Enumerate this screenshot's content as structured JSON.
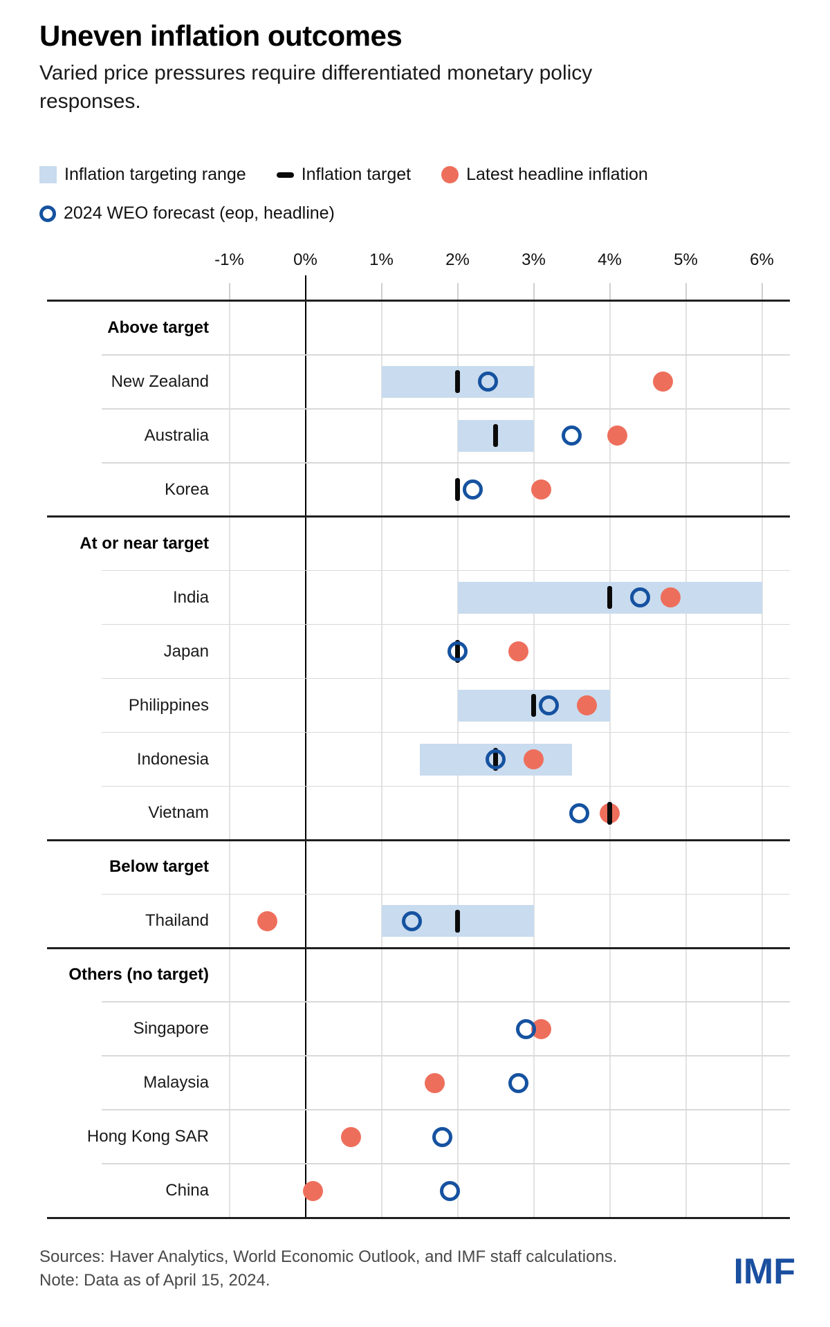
{
  "header": {
    "title": "Uneven inflation outcomes",
    "subtitle": "Varied price pressures require differentiated monetary policy responses."
  },
  "legend": {
    "items": [
      {
        "marker": "range-swatch",
        "label": "Inflation targeting range"
      },
      {
        "marker": "target-dash",
        "label": "Inflation target"
      },
      {
        "marker": "latest-dot",
        "label": "Latest headline inflation"
      },
      {
        "marker": "forecast-ring",
        "label": "2024 WEO forecast (eop, headline)"
      }
    ]
  },
  "colors": {
    "range_band": "#C9DBEE",
    "inflation_target": "#0a0a0a",
    "latest_headline": "#EE6E5C",
    "forecast_ring": "#1552A0",
    "imf_logo_blue": "#1A4FA0",
    "grid_light": "#E2E2E2",
    "grid_dark": "#1f1f1f"
  },
  "axis": {
    "tick_labels": [
      "-1%",
      "0%",
      "1%",
      "2%",
      "3%",
      "4%",
      "5%",
      "6%"
    ],
    "tick_values": [
      -1,
      0,
      1,
      2,
      3,
      4,
      5,
      6
    ]
  },
  "chart_data": {
    "type": "scatter",
    "subtype": "horizontal-dot-plot",
    "unit": "percent",
    "xlim": [
      -1.6,
      6.4
    ],
    "x_ticks": [
      -1,
      0,
      1,
      2,
      3,
      4,
      5,
      6
    ],
    "grid": true,
    "series": [
      "Inflation targeting range",
      "Inflation target",
      "Latest headline inflation",
      "2024 WEO forecast (eop, headline)"
    ],
    "groups": [
      {
        "label": "Above target",
        "rows": [
          {
            "country": "New Zealand",
            "range": [
              1,
              3
            ],
            "target": 2,
            "forecast": 2.4,
            "latest": 4.7
          },
          {
            "country": "Australia",
            "range": [
              2,
              3
            ],
            "target": 2.5,
            "forecast": 3.5,
            "latest": 4.1
          },
          {
            "country": "Korea",
            "range": null,
            "target": 2,
            "forecast": 2.2,
            "latest": 3.1
          }
        ]
      },
      {
        "label": "At or near target",
        "rows": [
          {
            "country": "India",
            "range": [
              2,
              6
            ],
            "target": 4,
            "forecast": 4.4,
            "latest": 4.8
          },
          {
            "country": "Japan",
            "range": null,
            "target": 2,
            "forecast": 2.0,
            "latest": 2.8
          },
          {
            "country": "Philippines",
            "range": [
              2,
              4
            ],
            "target": 3,
            "forecast": 3.2,
            "latest": 3.7
          },
          {
            "country": "Indonesia",
            "range": [
              1.5,
              3.5
            ],
            "target": 2.5,
            "forecast": 2.5,
            "latest": 3.0
          },
          {
            "country": "Vietnam",
            "range": null,
            "target": 4,
            "forecast": 3.6,
            "latest": 4.0
          }
        ]
      },
      {
        "label": "Below target",
        "rows": [
          {
            "country": "Thailand",
            "range": [
              1,
              3
            ],
            "target": 2,
            "forecast": 1.4,
            "latest": -0.5
          }
        ]
      },
      {
        "label": "Others (no target)",
        "rows": [
          {
            "country": "Singapore",
            "range": null,
            "target": null,
            "forecast": 2.9,
            "latest": 3.1
          },
          {
            "country": "Malaysia",
            "range": null,
            "target": null,
            "forecast": 2.8,
            "latest": 1.7
          },
          {
            "country": "Hong Kong SAR",
            "range": null,
            "target": null,
            "forecast": 1.8,
            "latest": 0.6
          },
          {
            "country": "China",
            "range": null,
            "target": null,
            "forecast": 1.9,
            "latest": 0.1
          }
        ]
      }
    ]
  },
  "footer": {
    "sources": "Sources: Haver Analytics, World Economic Outlook, and IMF staff calculations.",
    "note": "Note: Data as of April 15, 2024.",
    "logo": "IMF"
  }
}
